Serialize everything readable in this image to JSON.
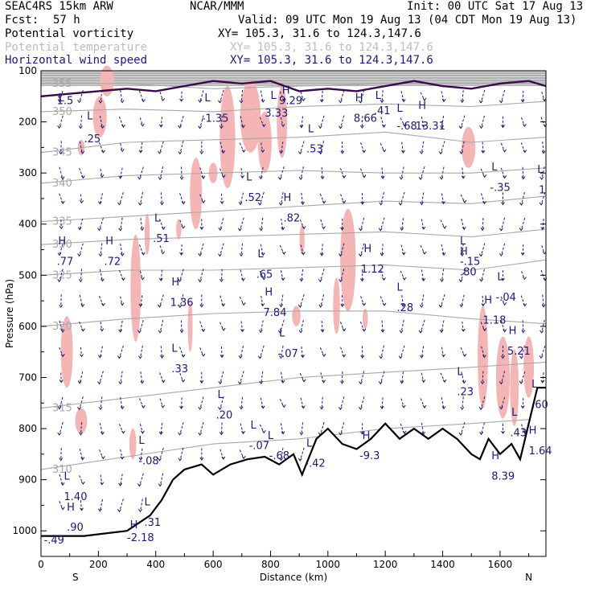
{
  "header": {
    "model": "SEAC4RS 15km ARW",
    "org": "NCAR/MMM",
    "init": "Init: 00 UTC Sat 17 Aug 13",
    "fcst_label": "Fcst:",
    "fcst_value": "57 h",
    "valid": "Valid: 09 UTC Mon 19 Aug 13 (04 CDT Mon 19 Aug 13)",
    "fields": [
      {
        "name": "Potential vorticity",
        "color": "#000000",
        "xy": "XY= 105.3, 31.6 to 124.3,147.6"
      },
      {
        "name": "Potential temperature",
        "color": "#bdbdbd",
        "xy": "XY= 105.3, 31.6 to 124.3,147.6"
      },
      {
        "name": "Horizontal wind speed",
        "color": "#1a1a7a",
        "xy": "XY= 105.3, 31.6 to 124.3,147.6"
      }
    ]
  },
  "chart_data": {
    "type": "cross-section",
    "ylabel": "Pressure (hPa)",
    "xlabel": "Distance (km)",
    "x_left_label": "S",
    "x_right_label": "N",
    "xlim": [
      0,
      1760
    ],
    "ylim": [
      1050,
      100
    ],
    "xticks": [
      0,
      200,
      400,
      600,
      800,
      1000,
      1200,
      1400,
      1600
    ],
    "yticks": [
      100,
      200,
      300,
      400,
      500,
      600,
      700,
      800,
      900,
      1000
    ],
    "colors": {
      "pv_fill": "#f5b5b5",
      "wind": "#1a1a7a",
      "isentrope": "#a8a8a8",
      "terrain": "#000000",
      "tropopause": "#3a0a4a"
    },
    "isentropes": [
      {
        "label": "310",
        "x": [
          0,
          300,
          600,
          900,
          1200,
          1500,
          1760
        ],
        "p": [
          880,
          855,
          830,
          820,
          800,
          790,
          780
        ]
      },
      {
        "label": "315",
        "x": [
          0,
          300,
          600,
          900,
          1200,
          1500,
          1760
        ],
        "p": [
          760,
          740,
          720,
          700,
          690,
          680,
          670
        ]
      },
      {
        "label": "320",
        "x": [
          0,
          300,
          600,
          900,
          1200,
          1500,
          1760
        ],
        "p": [
          600,
          585,
          575,
          570,
          570,
          585,
          595
        ]
      },
      {
        "label": "325",
        "x": [
          0,
          300,
          600,
          900,
          1200,
          1500,
          1760
        ],
        "p": [
          500,
          490,
          490,
          485,
          480,
          490,
          470
        ]
      },
      {
        "label": "330",
        "x": [
          0,
          300,
          600,
          900,
          1200,
          1500,
          1760
        ],
        "p": [
          440,
          430,
          425,
          420,
          415,
          425,
          410
        ]
      },
      {
        "label": "335",
        "x": [
          0,
          300,
          600,
          900,
          1200,
          1500,
          1760
        ],
        "p": [
          395,
          385,
          375,
          365,
          355,
          360,
          345
        ]
      },
      {
        "label": "340",
        "x": [
          0,
          300,
          600,
          900,
          1200,
          1500,
          1760
        ],
        "p": [
          320,
          305,
          300,
          295,
          300,
          300,
          290
        ]
      },
      {
        "label": "345",
        "x": [
          0,
          300,
          600,
          900,
          1200,
          1500,
          1760
        ],
        "p": [
          260,
          240,
          235,
          230,
          220,
          240,
          230
        ]
      },
      {
        "label": "350",
        "x": [
          0,
          300,
          600,
          900,
          1200,
          1500,
          1760
        ],
        "p": [
          180,
          175,
          180,
          170,
          165,
          170,
          160
        ]
      },
      {
        "label": "355",
        "x": [
          0,
          300,
          600,
          900,
          1200,
          1500,
          1760
        ],
        "p": [
          125,
          125,
          135,
          130,
          125,
          125,
          120
        ]
      }
    ],
    "tropopause": {
      "x": [
        0,
        100,
        200,
        300,
        400,
        500,
        600,
        700,
        800,
        900,
        1000,
        1100,
        1200,
        1300,
        1400,
        1500,
        1600,
        1700,
        1760
      ],
      "p": [
        150,
        145,
        140,
        135,
        140,
        130,
        120,
        125,
        120,
        140,
        135,
        140,
        130,
        120,
        130,
        135,
        125,
        120,
        130
      ]
    },
    "terrain": {
      "x": [
        0,
        150,
        300,
        380,
        420,
        460,
        500,
        560,
        600,
        660,
        720,
        780,
        830,
        880,
        910,
        960,
        1000,
        1050,
        1100,
        1150,
        1200,
        1250,
        1300,
        1350,
        1400,
        1450,
        1500,
        1530,
        1560,
        1600,
        1640,
        1670,
        1700,
        1730,
        1760
      ],
      "p": [
        1010,
        1010,
        1000,
        970,
        940,
        900,
        880,
        870,
        890,
        870,
        860,
        855,
        870,
        850,
        890,
        820,
        800,
        830,
        840,
        820,
        790,
        820,
        800,
        820,
        800,
        820,
        850,
        860,
        820,
        850,
        830,
        860,
        790,
        720,
        720
      ]
    },
    "pv_patches": [
      {
        "x": 90,
        "p": 650,
        "w": 35,
        "h": 140
      },
      {
        "x": 140,
        "p": 785,
        "w": 35,
        "h": 50
      },
      {
        "x": 330,
        "p": 525,
        "w": 30,
        "h": 210
      },
      {
        "x": 320,
        "p": 830,
        "w": 20,
        "h": 60
      },
      {
        "x": 230,
        "p": 120,
        "w": 40,
        "h": 60
      },
      {
        "x": 205,
        "p": 190,
        "w": 40,
        "h": 80
      },
      {
        "x": 140,
        "p": 250,
        "w": 20,
        "h": 30
      },
      {
        "x": 370,
        "p": 420,
        "w": 15,
        "h": 80
      },
      {
        "x": 480,
        "p": 410,
        "w": 15,
        "h": 40
      },
      {
        "x": 520,
        "p": 600,
        "w": 12,
        "h": 100
      },
      {
        "x": 540,
        "p": 340,
        "w": 35,
        "h": 140
      },
      {
        "x": 600,
        "p": 300,
        "w": 25,
        "h": 40
      },
      {
        "x": 650,
        "p": 230,
        "w": 45,
        "h": 200
      },
      {
        "x": 730,
        "p": 190,
        "w": 60,
        "h": 140
      },
      {
        "x": 780,
        "p": 240,
        "w": 40,
        "h": 120
      },
      {
        "x": 840,
        "p": 200,
        "w": 30,
        "h": 140
      },
      {
        "x": 890,
        "p": 580,
        "w": 25,
        "h": 40
      },
      {
        "x": 910,
        "p": 430,
        "w": 15,
        "h": 60
      },
      {
        "x": 1070,
        "p": 470,
        "w": 45,
        "h": 200
      },
      {
        "x": 1130,
        "p": 585,
        "w": 15,
        "h": 40
      },
      {
        "x": 1030,
        "p": 560,
        "w": 20,
        "h": 110
      },
      {
        "x": 1490,
        "p": 250,
        "w": 40,
        "h": 80
      },
      {
        "x": 1540,
        "p": 660,
        "w": 30,
        "h": 200
      },
      {
        "x": 1610,
        "p": 700,
        "w": 40,
        "h": 160
      },
      {
        "x": 1650,
        "p": 720,
        "w": 25,
        "h": 150
      },
      {
        "x": 1700,
        "p": 680,
        "w": 30,
        "h": 120
      }
    ],
    "extrema_labels": [
      {
        "t": "L",
        "x": 160,
        "p": 195
      },
      {
        "t": ".25",
        "x": 150,
        "p": 240
      },
      {
        "t": "L",
        "x": 395,
        "p": 395
      },
      {
        "t": ".51",
        "x": 390,
        "p": 435
      },
      {
        "t": "H",
        "x": 60,
        "p": 440
      },
      {
        "t": ".77",
        "x": 55,
        "p": 480
      },
      {
        "t": "H",
        "x": 225,
        "p": 440
      },
      {
        "t": ".72",
        "x": 220,
        "p": 480
      },
      {
        "t": "H",
        "x": 1125,
        "p": 455
      },
      {
        "t": "1.12",
        "x": 1115,
        "p": 495
      },
      {
        "t": "H",
        "x": 455,
        "p": 520
      },
      {
        "t": "1.36",
        "x": 450,
        "p": 560
      },
      {
        "t": "L",
        "x": 455,
        "p": 650
      },
      {
        "t": ".33",
        "x": 455,
        "p": 690
      },
      {
        "t": "H",
        "x": 845,
        "p": 355
      },
      {
        "t": ".82",
        "x": 845,
        "p": 395
      },
      {
        "t": "H",
        "x": 1095,
        "p": 160
      },
      {
        "t": "8.66",
        "x": 1090,
        "p": 200
      },
      {
        "t": "L",
        "x": 930,
        "p": 220
      },
      {
        "t": ".53",
        "x": 925,
        "p": 260
      },
      {
        "t": "L",
        "x": 715,
        "p": 315
      },
      {
        "t": ".52",
        "x": 710,
        "p": 355
      },
      {
        "t": "L",
        "x": 755,
        "p": 465
      },
      {
        "t": ".65",
        "x": 750,
        "p": 505
      },
      {
        "t": "H",
        "x": 780,
        "p": 540
      },
      {
        "t": "7.84",
        "x": 775,
        "p": 580
      },
      {
        "t": "L",
        "x": 830,
        "p": 620
      },
      {
        "t": "-.07",
        "x": 825,
        "p": 660
      },
      {
        "t": "L",
        "x": 1240,
        "p": 530
      },
      {
        "t": ".28",
        "x": 1240,
        "p": 570
      },
      {
        "t": "L",
        "x": 1460,
        "p": 440
      },
      {
        "t": "-.15",
        "x": 1460,
        "p": 480
      },
      {
        "t": "H",
        "x": 1460,
        "p": 460
      },
      {
        "t": ".80",
        "x": 1460,
        "p": 500
      },
      {
        "t": "L",
        "x": 1590,
        "p": 510
      },
      {
        "t": "-.04",
        "x": 1585,
        "p": 550
      },
      {
        "t": "H",
        "x": 1545,
        "p": 555
      },
      {
        "t": "1.18",
        "x": 1540,
        "p": 595
      },
      {
        "t": "H",
        "x": 1630,
        "p": 615
      },
      {
        "t": "5.21",
        "x": 1625,
        "p": 655
      },
      {
        "t": "L",
        "x": 1450,
        "p": 695
      },
      {
        "t": ".23",
        "x": 1450,
        "p": 735
      },
      {
        "t": "L",
        "x": 1640,
        "p": 775
      },
      {
        "t": ".43",
        "x": 1635,
        "p": 815
      },
      {
        "t": "L",
        "x": 615,
        "p": 740
      },
      {
        "t": ".20",
        "x": 610,
        "p": 780
      },
      {
        "t": "L",
        "x": 730,
        "p": 800
      },
      {
        "t": "-.07",
        "x": 725,
        "p": 840
      },
      {
        "t": "L",
        "x": 1240,
        "p": 180
      },
      {
        "t": "-.68",
        "x": 1240,
        "p": 215
      },
      {
        "t": "H",
        "x": 1315,
        "p": 175
      },
      {
        "t": "13.31",
        "x": 1305,
        "p": 215
      },
      {
        "t": "L",
        "x": 1165,
        "p": 155
      },
      {
        "t": ".41",
        "x": 1160,
        "p": 185
      },
      {
        "t": "L",
        "x": 800,
        "p": 155
      },
      {
        "t": "3.33",
        "x": 780,
        "p": 190
      },
      {
        "t": "H",
        "x": 840,
        "p": 145
      },
      {
        "t": "9.29",
        "x": 830,
        "p": 165
      },
      {
        "t": "L",
        "x": 570,
        "p": 160
      },
      {
        "t": "-1.35",
        "x": 560,
        "p": 200
      },
      {
        "t": "L",
        "x": 60,
        "p": 160
      },
      {
        "t": "1.5",
        "x": 55,
        "p": 165
      },
      {
        "t": "L",
        "x": 1570,
        "p": 295
      },
      {
        "t": "-.35",
        "x": 1565,
        "p": 335
      },
      {
        "t": "L",
        "x": 1730,
        "p": 300
      },
      {
        "t": "1",
        "x": 1735,
        "p": 340
      },
      {
        "t": "L",
        "x": 790,
        "p": 820
      },
      {
        "t": "-.68",
        "x": 795,
        "p": 860
      },
      {
        "t": "L",
        "x": 925,
        "p": 835
      },
      {
        "t": "-.42",
        "x": 920,
        "p": 875
      },
      {
        "t": "H",
        "x": 1120,
        "p": 820
      },
      {
        "t": "-9.3",
        "x": 1110,
        "p": 860
      },
      {
        "t": "H",
        "x": 1700,
        "p": 810
      },
      {
        "t": "1.64",
        "x": 1700,
        "p": 850
      },
      {
        "t": "L",
        "x": 1710,
        "p": 720
      },
      {
        "t": ".60",
        "x": 1710,
        "p": 760
      },
      {
        "t": "H",
        "x": 1570,
        "p": 860
      },
      {
        "t": "8.39",
        "x": 1570,
        "p": 900
      },
      {
        "t": "L",
        "x": 340,
        "p": 830
      },
      {
        "t": "-.08",
        "x": 340,
        "p": 870
      },
      {
        "t": "L",
        "x": 80,
        "p": 900
      },
      {
        "t": "1.40",
        "x": 80,
        "p": 940
      },
      {
        "t": "H",
        "x": 90,
        "p": 960
      },
      {
        "t": ".90",
        "x": 90,
        "p": 1000
      },
      {
        "t": "L",
        "x": 360,
        "p": 950
      },
      {
        "t": ".31",
        "x": 360,
        "p": 990
      },
      {
        "t": "H",
        "x": 310,
        "p": 995
      },
      {
        "t": "-2.18",
        "x": 300,
        "p": 1020
      },
      {
        "t": "-.49",
        "x": 10,
        "p": 1025
      }
    ]
  }
}
